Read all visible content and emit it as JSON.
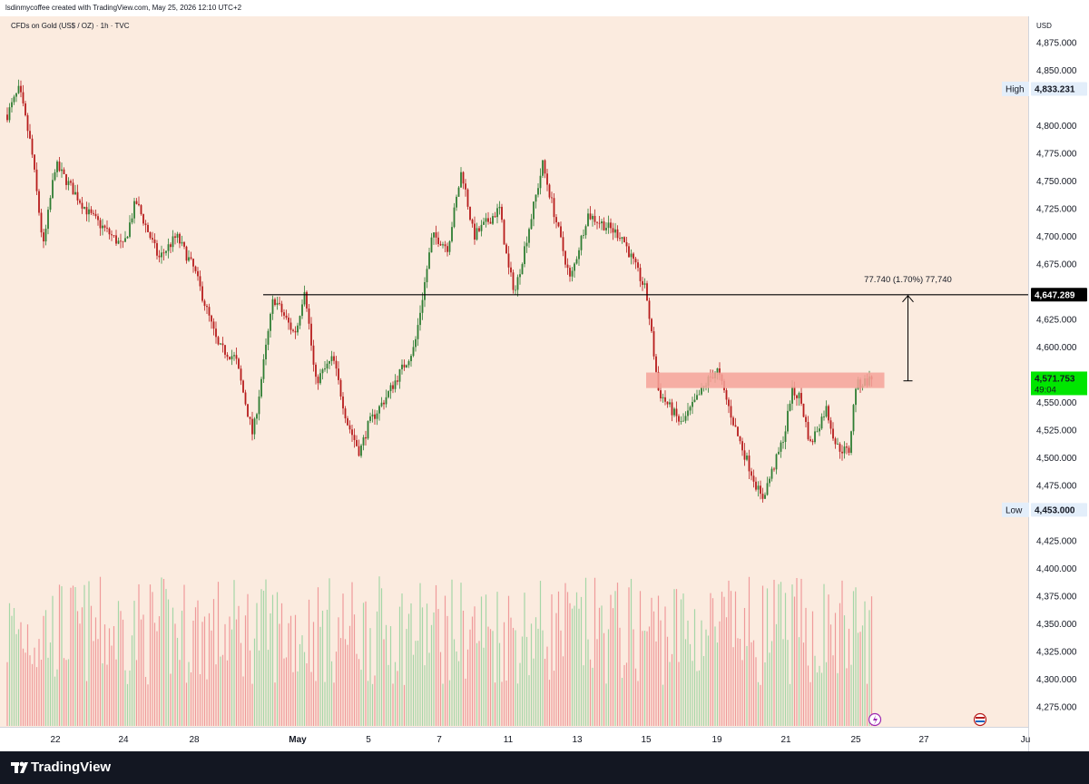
{
  "header": {
    "author_line": "lsdinmycoffee created with TradingView.com, May 25, 2026 12:10 UTC+2",
    "symbol_line": "CFDs on Gold (US$ / OZ) · 1h · TVC"
  },
  "footer": {
    "brand": "TradingView",
    "logo_icon": "tradingview-logo-icon"
  },
  "colors": {
    "background": "#fbebdf",
    "up": "#2e7d32",
    "down": "#b71c1c",
    "volume_up": "#a5d6a7",
    "volume_down": "#ef9a9a",
    "zone": "#f4a39a",
    "last_price_badge": "#00e600",
    "footer_bg": "#131722"
  },
  "chart_data": {
    "type": "candlestick",
    "currency": "USD",
    "y_ticks": [
      4875,
      4850,
      4800,
      4775,
      4750,
      4725,
      4700,
      4675,
      4625,
      4600,
      4550,
      4525,
      4500,
      4475,
      4425,
      4400,
      4375,
      4350,
      4325,
      4300,
      4275
    ],
    "x_ticks": [
      "22",
      "24",
      "28",
      "May",
      "5",
      "7",
      "11",
      "13",
      "15",
      "19",
      "21",
      "25",
      "27",
      "Ju"
    ],
    "high": {
      "label": "High",
      "value": "4,833.231"
    },
    "low": {
      "label": "Low",
      "value": "4,453.000"
    },
    "horizontal_line": {
      "value": "4,647.289",
      "from_date": "Apr 30"
    },
    "last_price": {
      "value": "4,571.753",
      "countdown": "49:04"
    },
    "resistance_zone": {
      "from_date": "May 15",
      "to_date": "May 26",
      "low": 4563,
      "high": 4577
    },
    "measure": {
      "label": "77.740 (1.70%) 77,740",
      "from": 4569.5,
      "to": 4647.289,
      "date": "May 26"
    },
    "price_path": [
      {
        "date": "Apr 20",
        "price": 4810
      },
      {
        "date": "Apr 20.5",
        "price": 4833
      },
      {
        "date": "Apr 21",
        "price": 4780
      },
      {
        "date": "Apr 21.5",
        "price": 4690
      },
      {
        "date": "Apr 22",
        "price": 4765
      },
      {
        "date": "Apr 23",
        "price": 4720
      },
      {
        "date": "Apr 24",
        "price": 4690
      },
      {
        "date": "Apr 24.7",
        "price": 4732
      },
      {
        "date": "Apr 26",
        "price": 4680
      },
      {
        "date": "Apr 27",
        "price": 4700
      },
      {
        "date": "Apr 28",
        "price": 4670
      },
      {
        "date": "Apr 28.7",
        "price": 4600
      },
      {
        "date": "Apr 29.2",
        "price": 4590
      },
      {
        "date": "Apr 29.7",
        "price": 4520
      },
      {
        "date": "Apr 30.3",
        "price": 4645
      },
      {
        "date": "Apr 30.9",
        "price": 4612
      },
      {
        "date": "May 1.4",
        "price": 4655
      },
      {
        "date": "May 2",
        "price": 4568
      },
      {
        "date": "May 3",
        "price": 4590
      },
      {
        "date": "May 3.8",
        "price": 4532
      },
      {
        "date": "May 4.5",
        "price": 4505
      },
      {
        "date": "May 5.5",
        "price": 4555
      },
      {
        "date": "May 6.3",
        "price": 4600
      },
      {
        "date": "May 6.8",
        "price": 4700
      },
      {
        "date": "May 7.5",
        "price": 4690
      },
      {
        "date": "May 8.3",
        "price": 4760
      },
      {
        "date": "May 9",
        "price": 4700
      },
      {
        "date": "May 10.5",
        "price": 4725
      },
      {
        "date": "May 11.2",
        "price": 4650
      },
      {
        "date": "May 12",
        "price": 4765
      },
      {
        "date": "May 12.8",
        "price": 4660
      },
      {
        "date": "May 13.3",
        "price": 4720
      },
      {
        "date": "May 14.3",
        "price": 4700
      },
      {
        "date": "May 15",
        "price": 4650
      },
      {
        "date": "May 15.7",
        "price": 4560
      },
      {
        "date": "May 17",
        "price": 4530
      },
      {
        "date": "May 18.5",
        "price": 4570
      },
      {
        "date": "May 19",
        "price": 4580
      },
      {
        "date": "May 19.6",
        "price": 4520
      },
      {
        "date": "May 20.3",
        "price": 4462
      },
      {
        "date": "May 20.8",
        "price": 4505
      },
      {
        "date": "May 21.3",
        "price": 4560
      },
      {
        "date": "May 21.8",
        "price": 4555
      },
      {
        "date": "May 22.4",
        "price": 4512
      },
      {
        "date": "May 23.3",
        "price": 4545
      },
      {
        "date": "May 23.9",
        "price": 4510
      },
      {
        "date": "May 24.6",
        "price": 4505
      },
      {
        "date": "May 25",
        "price": 4565
      },
      {
        "date": "May 25.5",
        "price": 4571.753
      }
    ]
  }
}
